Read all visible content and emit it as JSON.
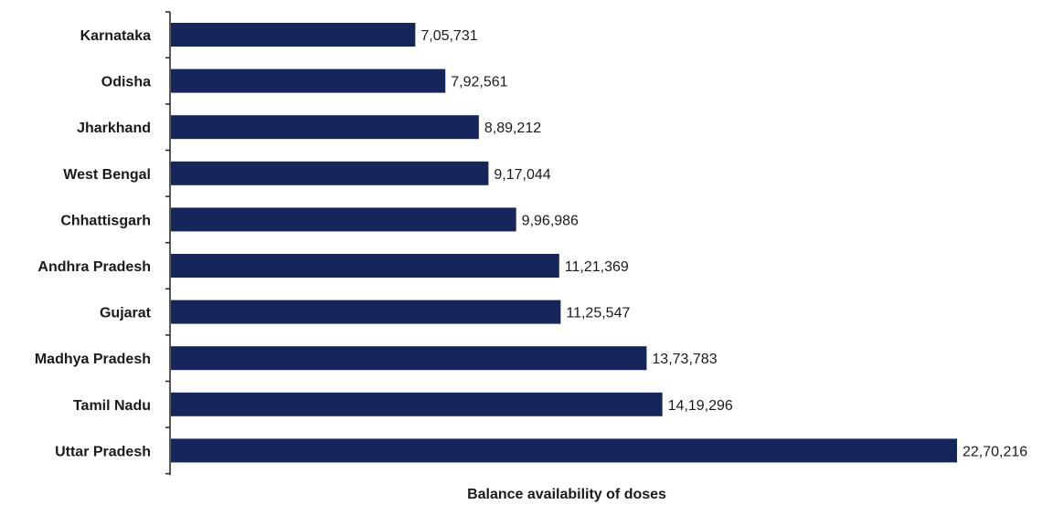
{
  "chart_data": {
    "type": "bar",
    "orientation": "horizontal",
    "categories": [
      "Karnataka",
      "Odisha",
      "Jharkhand",
      "West Bengal",
      "Chhattisgarh",
      "Andhra Pradesh",
      "Gujarat",
      "Madhya Pradesh",
      "Tamil Nadu",
      "Uttar Pradesh"
    ],
    "values": [
      705731,
      792561,
      889212,
      917044,
      996986,
      1121369,
      1125547,
      1373783,
      1419296,
      2270216
    ],
    "value_labels": [
      "7,05,731",
      "7,92,561",
      "8,89,212",
      "9,17,044",
      "9,96,986",
      "11,21,369",
      "11,25,547",
      "13,73,783",
      "14,19,296",
      "22,70,216"
    ],
    "title": "",
    "xlabel": "Balance availability of doses",
    "ylabel": "",
    "xlim": [
      0,
      2270216
    ],
    "grid": false,
    "legend": "none",
    "bar_color": "#14265c"
  }
}
